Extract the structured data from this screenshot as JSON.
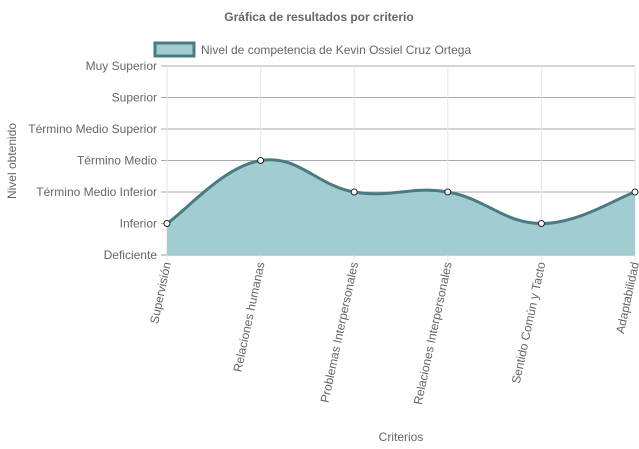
{
  "chart_data": {
    "type": "line",
    "title": "Gráfica de resultados por criterio",
    "x_label": "Criterios",
    "y_label": "Nivel obtenido",
    "categories": [
      "Supervisión",
      "Relaciones humanas",
      "Problemas Interpersonales",
      "Relaciones Interpersonales",
      "Sentido Común y Tacto",
      "Adaptabilidad"
    ],
    "series": [
      {
        "name": "Nivel de competencia de Kevin Ossiel Cruz Ortega",
        "color": "#4a7b82",
        "fill": "#a1cdd1",
        "values": [
          1,
          3,
          2,
          2,
          1,
          2
        ]
      }
    ],
    "ylim": [
      0,
      6
    ],
    "yticks": [
      {
        "value": 0,
        "label": "Deficiente"
      },
      {
        "value": 1,
        "label": "Inferior"
      },
      {
        "value": 2,
        "label": "Término Medio Inferior"
      },
      {
        "value": 3,
        "label": "Término Medio"
      },
      {
        "value": 4,
        "label": "Término Medio Superior"
      },
      {
        "value": 5,
        "label": "Superior"
      },
      {
        "value": 6,
        "label": "Muy Superior"
      }
    ],
    "grid": true
  }
}
